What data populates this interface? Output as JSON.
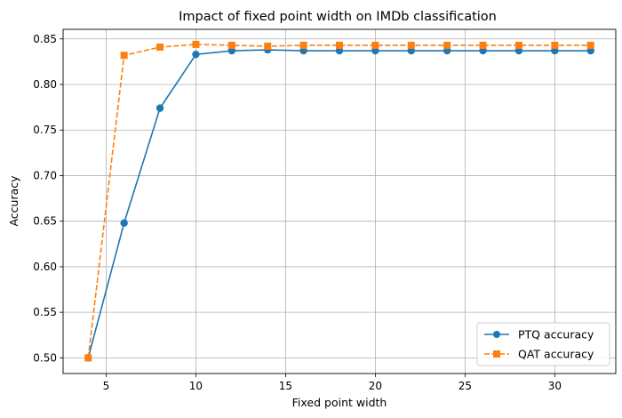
{
  "chart_data": {
    "type": "line",
    "title": "Impact of fixed point width on IMDb classification",
    "xlabel": "Fixed point width",
    "ylabel": "Accuracy",
    "xlim": [
      2.6,
      33.4
    ],
    "ylim": [
      0.4828,
      0.8605
    ],
    "xticks": [
      5,
      10,
      15,
      20,
      25,
      30
    ],
    "yticks": [
      0.5,
      0.55,
      0.6,
      0.65,
      0.7,
      0.75,
      0.8,
      0.85
    ],
    "ytick_format": 2,
    "grid": true,
    "legend_position": "lower-right",
    "series": [
      {
        "name": "PTQ accuracy",
        "color": "#1f77b4",
        "line_style": "solid",
        "marker": "circle",
        "x": [
          4,
          6,
          8,
          10,
          12,
          14,
          16,
          18,
          20,
          22,
          24,
          26,
          28,
          30,
          32
        ],
        "y": [
          0.5,
          0.648,
          0.774,
          0.833,
          0.837,
          0.838,
          0.837,
          0.837,
          0.837,
          0.837,
          0.837,
          0.837,
          0.837,
          0.837,
          0.837
        ]
      },
      {
        "name": "QAT accuracy",
        "color": "#ff7f0e",
        "line_style": "dashed",
        "marker": "square",
        "x": [
          4,
          6,
          8,
          10,
          12,
          14,
          16,
          18,
          20,
          22,
          24,
          26,
          28,
          30,
          32
        ],
        "y": [
          0.5,
          0.832,
          0.841,
          0.844,
          0.843,
          0.842,
          0.843,
          0.843,
          0.843,
          0.843,
          0.843,
          0.843,
          0.843,
          0.843,
          0.843
        ]
      }
    ]
  }
}
